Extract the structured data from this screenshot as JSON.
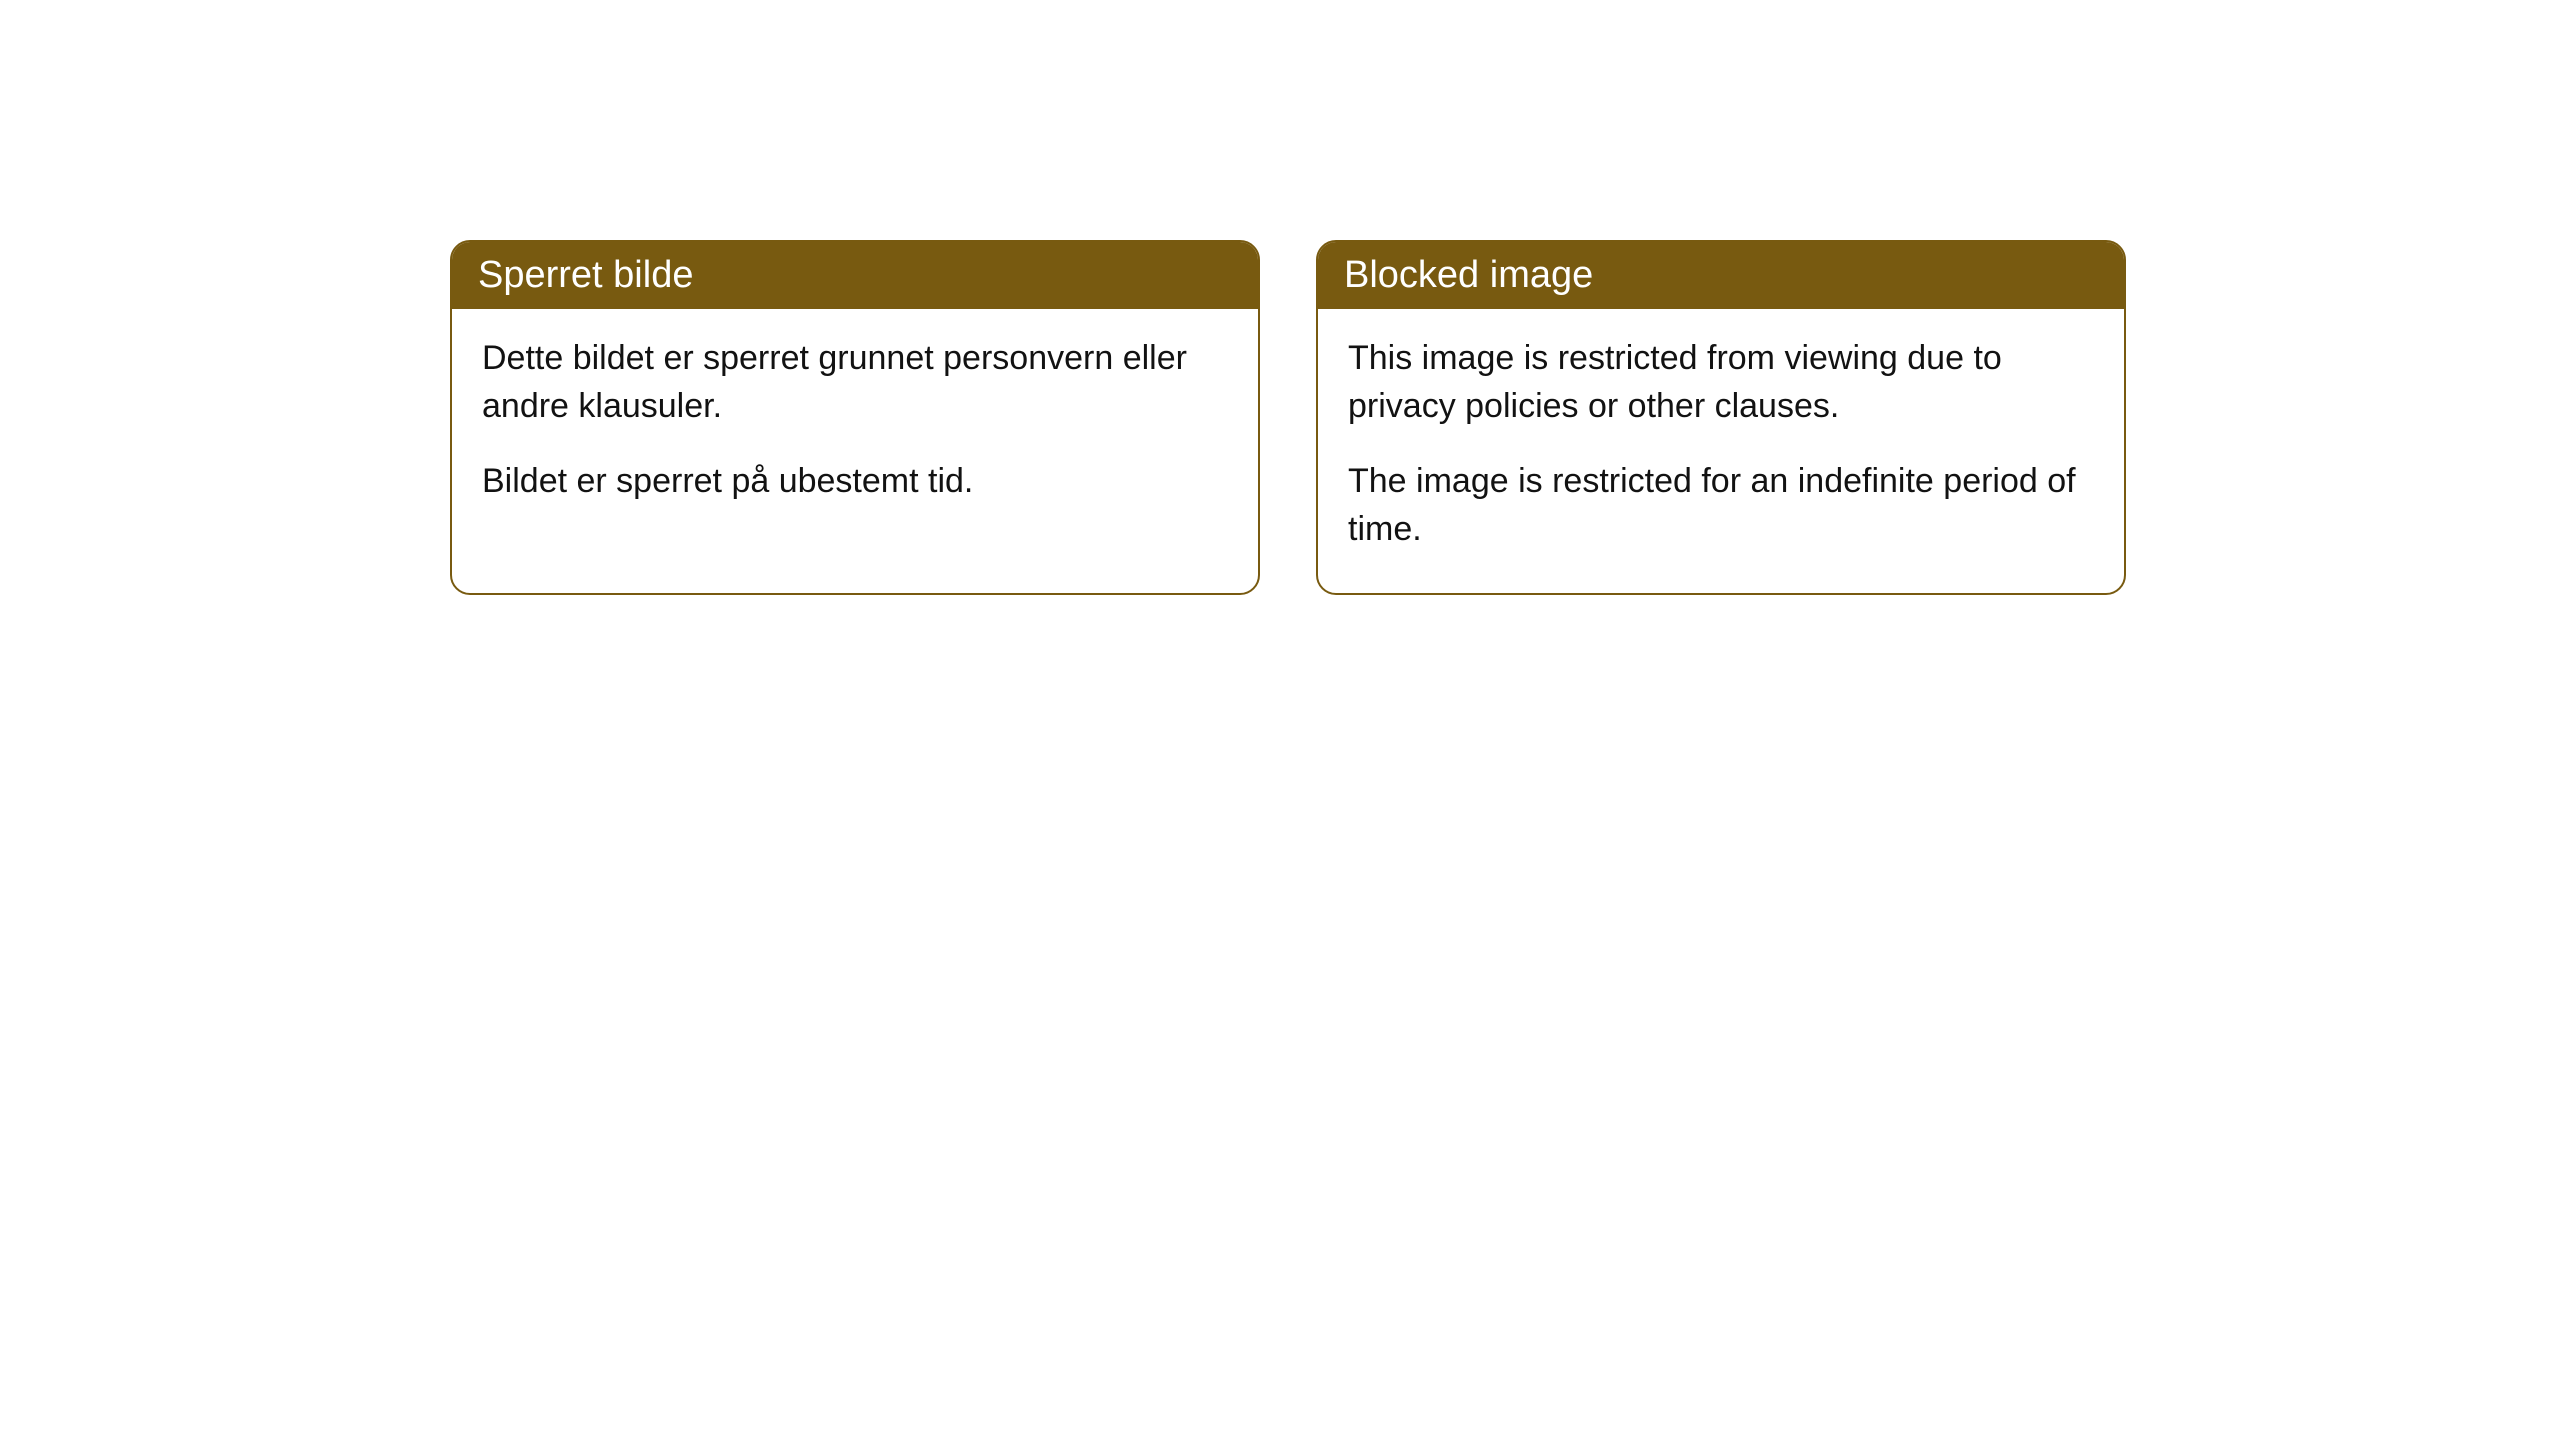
{
  "cards": [
    {
      "title": "Sperret bilde",
      "paragraph1": "Dette bildet er sperret grunnet personvern eller andre klausuler.",
      "paragraph2": "Bildet er sperret på ubestemt tid."
    },
    {
      "title": "Blocked image",
      "paragraph1": "This image is restricted from viewing due to privacy policies or other clauses.",
      "paragraph2": "The image is restricted for an indefinite period of time."
    }
  ],
  "styling": {
    "header_bg_color": "#785a10",
    "header_text_color": "#ffffff",
    "border_color": "#785a10",
    "body_text_color": "#121212",
    "page_bg_color": "#ffffff",
    "border_radius": 20,
    "header_fontsize": 38,
    "body_fontsize": 34
  }
}
